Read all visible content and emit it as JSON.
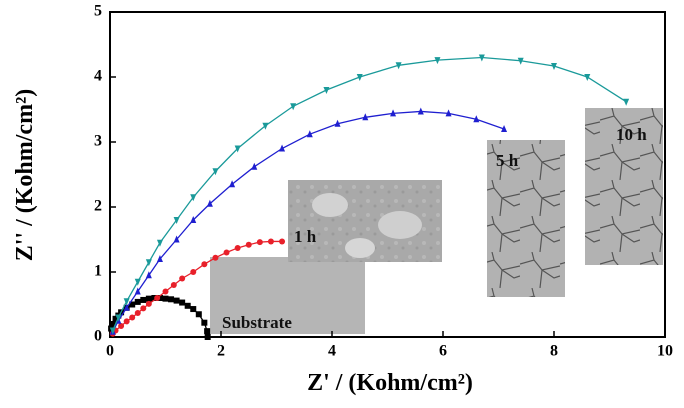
{
  "chart_data": {
    "type": "line",
    "x_label": "Z' / (Kohm/cm²)",
    "y_label": "Z'' / (Kohm/cm²)",
    "xlim": [
      0,
      10
    ],
    "xticks": [
      0,
      2,
      4,
      6,
      8,
      10
    ],
    "ylim": [
      0,
      5
    ],
    "yticks": [
      0,
      1,
      2,
      3,
      4,
      5
    ],
    "series": [
      {
        "name": "Substrate",
        "color": "#000000",
        "marker": "square",
        "x": [
          0.02,
          0.05,
          0.1,
          0.15,
          0.2,
          0.3,
          0.4,
          0.5,
          0.6,
          0.7,
          0.8,
          0.9,
          1.0,
          1.1,
          1.2,
          1.3,
          1.4,
          1.5,
          1.6,
          1.7,
          1.75,
          1.76
        ],
        "values": [
          0.13,
          0.2,
          0.28,
          0.33,
          0.38,
          0.45,
          0.5,
          0.54,
          0.57,
          0.59,
          0.6,
          0.6,
          0.59,
          0.58,
          0.56,
          0.53,
          0.48,
          0.43,
          0.35,
          0.22,
          0.09,
          0
        ]
      },
      {
        "name": "1 h",
        "color": "#e8202a",
        "marker": "circle",
        "x": [
          0.05,
          0.1,
          0.2,
          0.3,
          0.4,
          0.5,
          0.6,
          0.7,
          0.85,
          1.0,
          1.15,
          1.3,
          1.5,
          1.7,
          1.9,
          2.1,
          2.3,
          2.5,
          2.7,
          2.9,
          3.1
        ],
        "values": [
          0.05,
          0.1,
          0.17,
          0.24,
          0.3,
          0.37,
          0.44,
          0.51,
          0.6,
          0.7,
          0.8,
          0.9,
          1.0,
          1.12,
          1.22,
          1.3,
          1.37,
          1.42,
          1.46,
          1.47,
          1.47
        ]
      },
      {
        "name": "5 h",
        "color": "#1f1fd0",
        "marker": "triangle-up",
        "x": [
          0.05,
          0.15,
          0.3,
          0.5,
          0.7,
          0.9,
          1.2,
          1.5,
          1.8,
          2.2,
          2.6,
          3.1,
          3.6,
          4.1,
          4.6,
          5.1,
          5.6,
          6.1,
          6.6,
          7.1
        ],
        "values": [
          0.08,
          0.25,
          0.45,
          0.7,
          0.95,
          1.2,
          1.5,
          1.8,
          2.05,
          2.35,
          2.62,
          2.9,
          3.12,
          3.28,
          3.38,
          3.44,
          3.47,
          3.44,
          3.35,
          3.2
        ]
      },
      {
        "name": "10 h",
        "color": "#1a9a9a",
        "marker": "triangle-down",
        "x": [
          0.05,
          0.15,
          0.3,
          0.5,
          0.7,
          0.9,
          1.2,
          1.5,
          1.9,
          2.3,
          2.8,
          3.3,
          3.9,
          4.5,
          5.2,
          5.9,
          6.7,
          7.4,
          8.0,
          8.6,
          9.3
        ],
        "values": [
          0.1,
          0.3,
          0.55,
          0.85,
          1.15,
          1.45,
          1.8,
          2.15,
          2.55,
          2.9,
          3.25,
          3.55,
          3.8,
          4.0,
          4.18,
          4.26,
          4.3,
          4.25,
          4.17,
          4.0,
          3.62
        ]
      }
    ]
  }
}
